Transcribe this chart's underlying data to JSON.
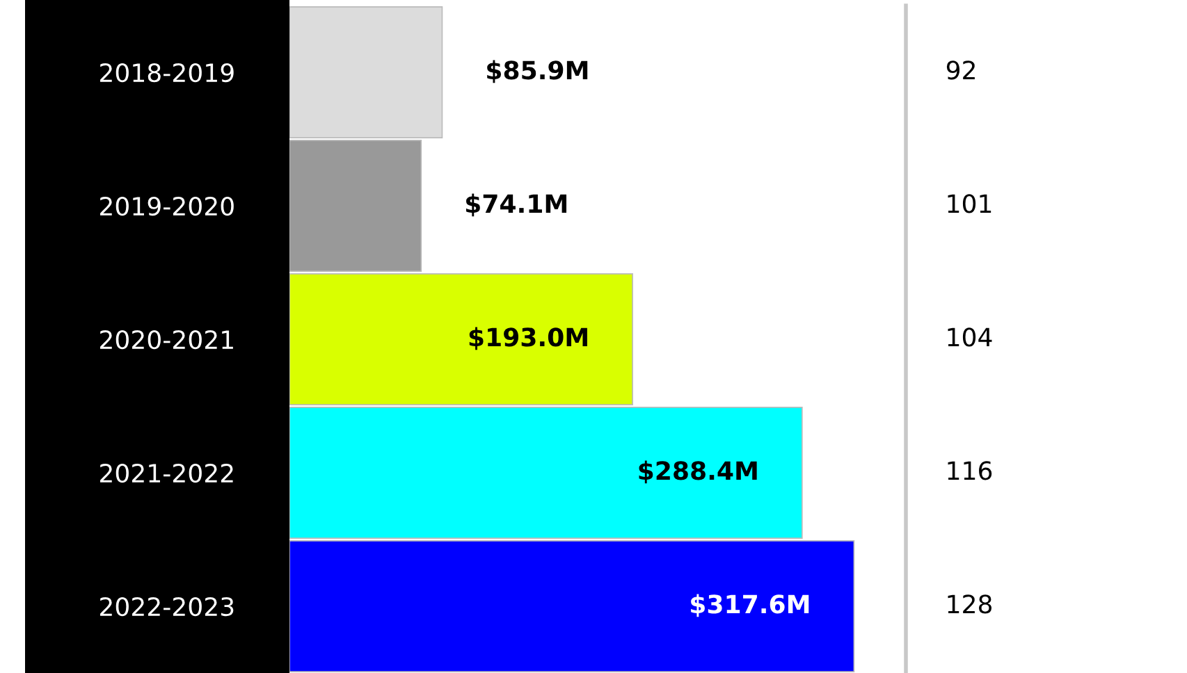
{
  "chart_data": [
    {
      "type": "bar",
      "orientation": "horizontal",
      "categories": [
        "2018-2019",
        "2019-2020",
        "2020-2021",
        "2021-2022",
        "2022-2023"
      ],
      "values": [
        85.9,
        74.1,
        193.0,
        288.4,
        317.6
      ],
      "colors": [
        "#dcdcdc",
        "#999999",
        "#d9ff00",
        "#00ffff",
        "#0000ff"
      ],
      "value_labels": [
        "$85.9M",
        "$74.1M",
        "$193.0M",
        "$288.4M",
        "$317.6M"
      ],
      "xlim": [
        0,
        346
      ],
      "tick_labels": "y",
      "grid": false,
      "legend": false
    },
    {
      "type": "other",
      "values": [
        92,
        101,
        104,
        116,
        128
      ],
      "data_labels": true
    }
  ]
}
